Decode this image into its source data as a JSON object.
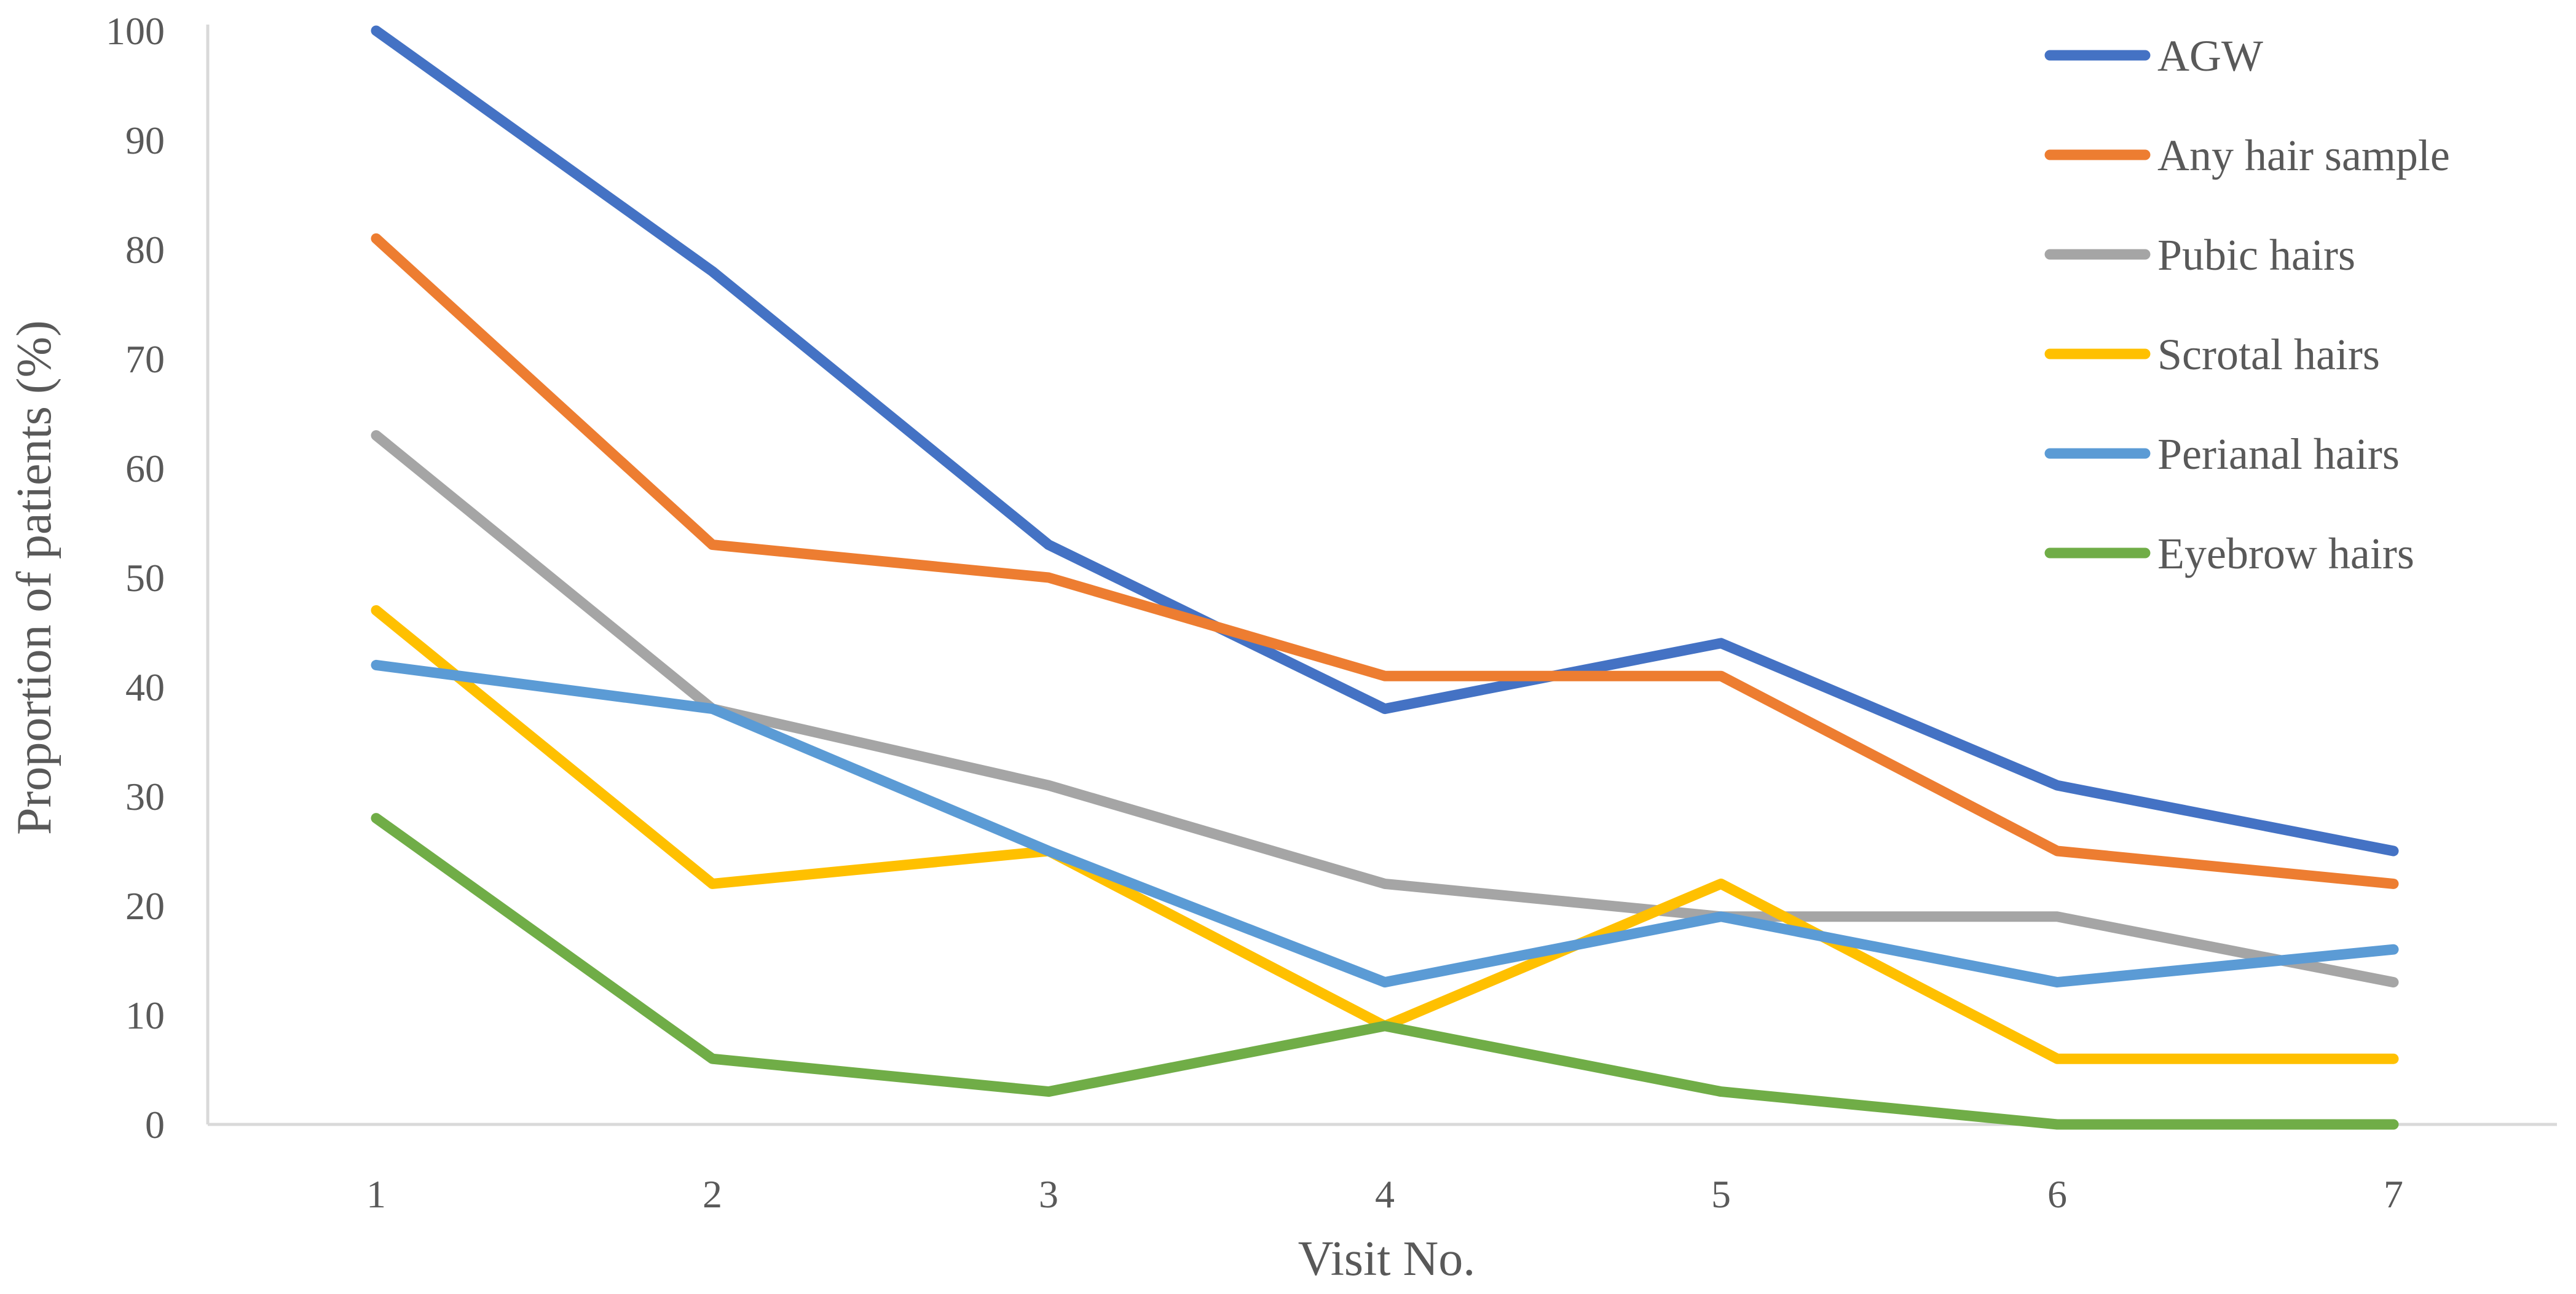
{
  "chart_data": {
    "type": "line",
    "title": "",
    "xlabel": "Visit No.",
    "ylabel": "Proportion of patients (%)",
    "x": [
      1,
      2,
      3,
      4,
      5,
      6,
      7
    ],
    "x_tick_labels": [
      "1",
      "2",
      "3",
      "4",
      "5",
      "6",
      "7"
    ],
    "ylim": [
      0,
      100
    ],
    "y_ticks": [
      0,
      10,
      20,
      30,
      40,
      50,
      60,
      70,
      80,
      90,
      100
    ],
    "y_tick_labels": [
      "0",
      "10",
      "20",
      "30",
      "40",
      "50",
      "60",
      "70",
      "80",
      "90",
      "100"
    ],
    "grid": false,
    "legend_position": "right",
    "series": [
      {
        "name": "AGW",
        "color": "#4472C4",
        "values": [
          100,
          78,
          53,
          38,
          44,
          31,
          25
        ]
      },
      {
        "name": "Any hair sample",
        "color": "#ED7D31",
        "values": [
          81,
          53,
          50,
          41,
          41,
          25,
          22
        ]
      },
      {
        "name": "Pubic hairs",
        "color": "#A5A5A5",
        "values": [
          63,
          38,
          31,
          22,
          19,
          19,
          13
        ]
      },
      {
        "name": "Scrotal hairs",
        "color": "#FFC000",
        "values": [
          47,
          22,
          25,
          9,
          22,
          6,
          6
        ]
      },
      {
        "name": "Perianal hairs",
        "color": "#5B9BD5",
        "values": [
          42,
          38,
          25,
          13,
          19,
          13,
          16
        ]
      },
      {
        "name": "Eyebrow hairs",
        "color": "#70AD47",
        "values": [
          28,
          6,
          3,
          9,
          3,
          0,
          0
        ]
      }
    ],
    "axis_color": "#D9D9D9",
    "text_color": "#595959"
  }
}
